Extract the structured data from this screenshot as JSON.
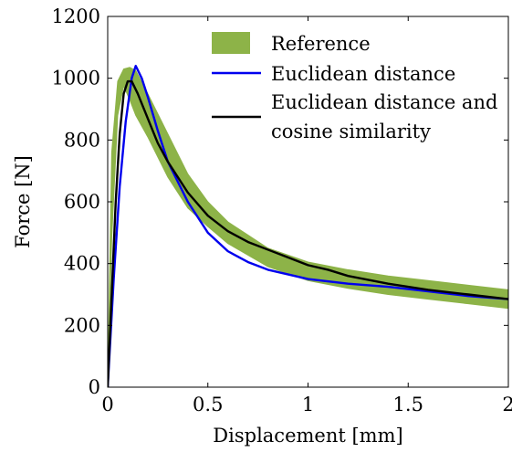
{
  "chart_data": {
    "type": "line",
    "xlabel": "Displacement [mm]",
    "ylabel": "Force [N]",
    "xlim": [
      0,
      2
    ],
    "ylim": [
      0,
      1200
    ],
    "x_ticks": [
      0,
      0.5,
      1,
      1.5,
      2
    ],
    "x_tick_labels": [
      "0",
      "0.5",
      "1",
      "1.5",
      "2"
    ],
    "y_ticks": [
      0,
      200,
      400,
      600,
      800,
      1000,
      1200
    ],
    "y_tick_labels": [
      "0",
      "200",
      "400",
      "600",
      "800",
      "1000",
      "1200"
    ],
    "grid": false,
    "legend_position": "top-right",
    "series": [
      {
        "name": "Reference",
        "color": "#8db348",
        "style": "band",
        "x": [
          0,
          0.02,
          0.05,
          0.08,
          0.11,
          0.14,
          0.2,
          0.3,
          0.4,
          0.5,
          0.6,
          0.8,
          1.0,
          1.2,
          1.4,
          1.6,
          1.8,
          2.0
        ],
        "lower": [
          0,
          480,
          880,
          975,
          930,
          880,
          810,
          680,
          580,
          520,
          465,
          390,
          345,
          320,
          300,
          285,
          270,
          255
        ],
        "upper": [
          0,
          760,
          990,
          1030,
          1035,
          1025,
          950,
          820,
          690,
          600,
          535,
          450,
          405,
          380,
          360,
          345,
          330,
          315
        ]
      },
      {
        "name": "Euclidean distance",
        "color": "#0000ee",
        "style": "line",
        "x": [
          0,
          0.03,
          0.06,
          0.09,
          0.12,
          0.14,
          0.17,
          0.2,
          0.25,
          0.3,
          0.4,
          0.5,
          0.6,
          0.7,
          0.8,
          1.0,
          1.2,
          1.4,
          1.6,
          1.8,
          2.0
        ],
        "y": [
          0,
          350,
          650,
          860,
          1000,
          1040,
          1000,
          940,
          830,
          730,
          600,
          500,
          440,
          405,
          380,
          350,
          335,
          325,
          310,
          295,
          285
        ]
      },
      {
        "name": "Euclidean distance and cosine similarity",
        "name_lines": [
          "Euclidean distance and",
          "cosine similarity"
        ],
        "color": "#000000",
        "style": "line",
        "x": [
          0,
          0.02,
          0.04,
          0.06,
          0.08,
          0.1,
          0.12,
          0.15,
          0.2,
          0.25,
          0.3,
          0.4,
          0.5,
          0.6,
          0.7,
          0.8,
          0.9,
          1.0,
          1.1,
          1.2,
          1.4,
          1.6,
          1.8,
          2.0
        ],
        "y": [
          0,
          300,
          600,
          820,
          950,
          990,
          990,
          950,
          870,
          790,
          730,
          630,
          555,
          505,
          470,
          445,
          420,
          395,
          380,
          360,
          335,
          315,
          300,
          285
        ]
      }
    ]
  }
}
